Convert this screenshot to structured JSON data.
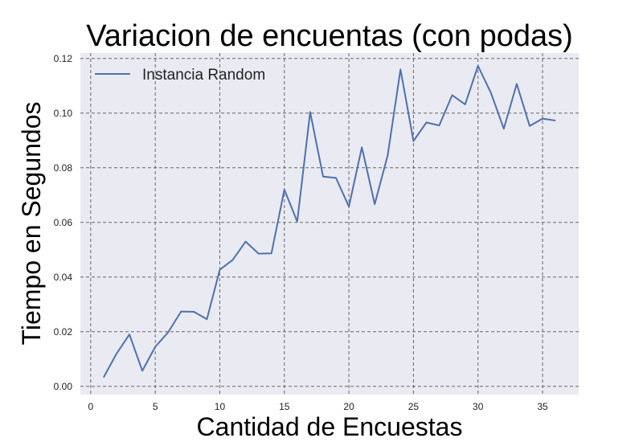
{
  "chart_data": {
    "type": "line",
    "title": "Variacion de encuentas (con podas)",
    "xlabel": "Cantidad de Encuestas",
    "ylabel": "Tiempo en Segundos",
    "xlim": [
      -0.8,
      37.8
    ],
    "ylim": [
      -0.003,
      0.122
    ],
    "x_ticks": [
      0,
      5,
      10,
      15,
      20,
      25,
      30,
      35
    ],
    "y_ticks": [
      0.0,
      0.02,
      0.04,
      0.06,
      0.08,
      0.1,
      0.12
    ],
    "y_tick_labels": [
      "0.00",
      "0.02",
      "0.04",
      "0.06",
      "0.08",
      "0.10",
      "0.12"
    ],
    "grid": true,
    "legend_position": "top-left",
    "series": [
      {
        "name": "Instancia Random",
        "color": "#4c72b0",
        "x": [
          1,
          2,
          3,
          4,
          5,
          6,
          7,
          8,
          9,
          10,
          11,
          12,
          13,
          14,
          15,
          16,
          17,
          18,
          19,
          20,
          21,
          22,
          23,
          24,
          25,
          26,
          27,
          28,
          29,
          30,
          31,
          32,
          33,
          34,
          35,
          36
        ],
        "values": [
          0.0033,
          0.012,
          0.019,
          0.0057,
          0.0145,
          0.0198,
          0.0274,
          0.0273,
          0.0246,
          0.0427,
          0.0463,
          0.053,
          0.0486,
          0.0487,
          0.072,
          0.0603,
          0.1004,
          0.0768,
          0.0763,
          0.0658,
          0.0875,
          0.0667,
          0.0845,
          0.116,
          0.0898,
          0.0966,
          0.0955,
          0.1066,
          0.1032,
          0.1173,
          0.1074,
          0.0943,
          0.1107,
          0.0953,
          0.098,
          0.0973
        ]
      }
    ]
  }
}
